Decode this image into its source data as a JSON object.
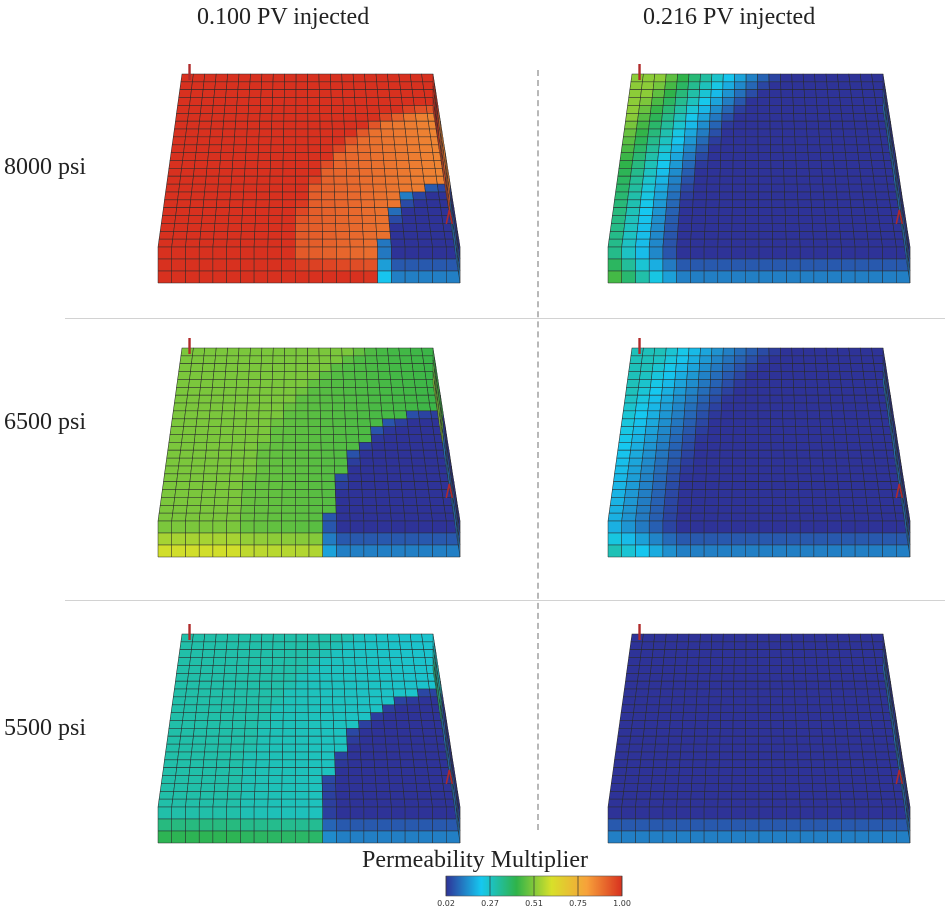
{
  "columns": [
    "0.100 PV injected",
    "0.216 PV injected"
  ],
  "rows": [
    "8000 psi",
    "6500 psi",
    "5500 psi"
  ],
  "panels": [
    {
      "row": "8000 psi",
      "column": "0.100 PV injected",
      "background_multiplier": 1.0,
      "front_extent": 0.33,
      "front_peak": 1.0,
      "rim": 0.02
    },
    {
      "row": "8000 psi",
      "column": "0.216 PV injected",
      "background_multiplier": 0.52,
      "front_extent": 1.15,
      "front_peak": 1.0,
      "rim": 0.02
    },
    {
      "row": "6500 psi",
      "column": "0.100 PV injected",
      "background_multiplier": 0.5,
      "front_extent": 0.6,
      "front_peak": 1.0,
      "rim": 0.02
    },
    {
      "row": "6500 psi",
      "column": "0.216 PV injected",
      "background_multiplier": 0.28,
      "front_extent": 1.15,
      "front_peak": 1.0,
      "rim": 0.02
    },
    {
      "row": "5500 psi",
      "column": "0.100 PV injected",
      "background_multiplier": 0.3,
      "front_extent": 0.62,
      "front_peak": 1.0,
      "rim": 0.02
    },
    {
      "row": "5500 psi",
      "column": "0.216 PV injected",
      "background_multiplier": 0.02,
      "front_extent": 0.0,
      "front_peak": 1.0,
      "rim": 0.02
    }
  ],
  "colorbar": {
    "title": "Permeability Multiplier",
    "ticks": [
      "0.02",
      "0.27",
      "0.51",
      "0.75",
      "1.00"
    ],
    "stops": [
      "#2e3398",
      "#16c8f0",
      "#2fb34a",
      "#d8e02a",
      "#f7a13a",
      "#d8311f"
    ],
    "min": 0.02,
    "max": 1.0
  },
  "well_color": "#b02a2a",
  "gridline_color": "#2a2a2a"
}
